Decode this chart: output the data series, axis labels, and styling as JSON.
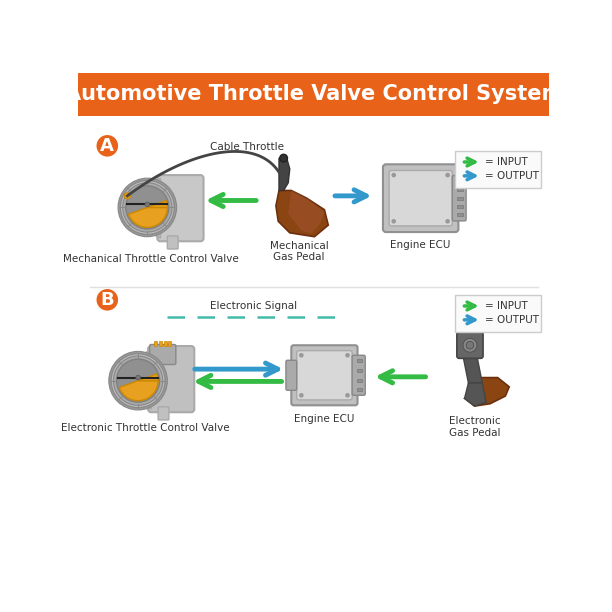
{
  "title": "Automotive Throttle Valve Control System",
  "title_color": "#FFFFFF",
  "header_bg": "#E8621A",
  "bg_color": "#FFFFFF",
  "label_A": "A",
  "label_B": "B",
  "badge_color": "#E8621A",
  "badge_text_color": "#FFFFFF",
  "section_A_labels": {
    "throttle_valve": "Mechanical Throttle Control Valve",
    "gas_pedal": "Mechanical\nGas Pedal",
    "ecu": "Engine ECU",
    "cable": "Cable Throttle"
  },
  "section_B_labels": {
    "throttle_valve": "Electronic Throttle Control Valve",
    "gas_pedal": "Electronic\nGas Pedal",
    "ecu": "Engine ECU",
    "signal": "Electronic Signal"
  },
  "arrow_green": "#33BB44",
  "arrow_blue": "#3399CC",
  "cable_color": "#444444",
  "teal_dash": "#44BBAA"
}
